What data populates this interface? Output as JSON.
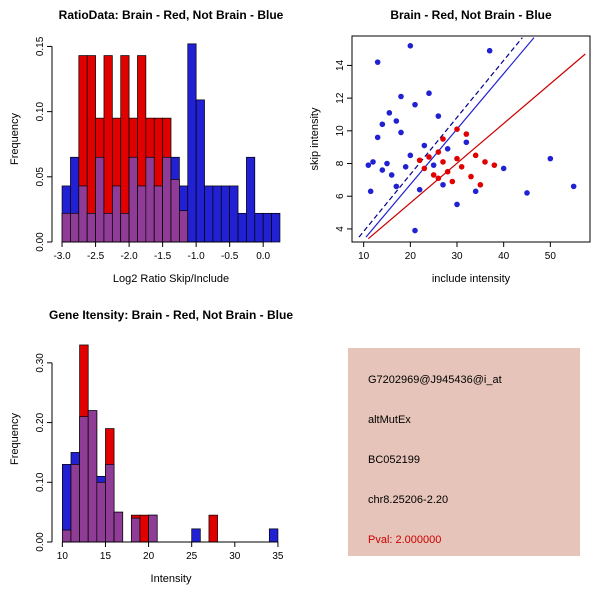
{
  "background": "#FFFFFF",
  "info_panel": {
    "bg_color": "#E6C4B9",
    "probe_id": "G7202969@J945436@i_at",
    "event_type": "altMutEx",
    "accession": "BC052199",
    "location": "chr8.25206-2.20",
    "pval": "Pval: 2.000000",
    "pval_color": "#CC0000"
  },
  "chart_data": [
    {
      "id": "ratio_hist",
      "type": "histogram",
      "title": "RatioData: Brain - Red, Not Brain - Blue",
      "xlabel": "Log2 Ratio Skip/Include",
      "ylabel": "Frequency",
      "xlim": [
        -3.15,
        0.4
      ],
      "ylim": [
        0,
        0.158
      ],
      "xticks": [
        -3.0,
        -2.5,
        -2.0,
        -1.5,
        -1.0,
        -0.5,
        0.0
      ],
      "xtick_labels": [
        "-3.0",
        "-2.5",
        "-2.0",
        "-1.5",
        "-1.0",
        "-0.5",
        "0.0"
      ],
      "yticks": [
        0.0,
        0.05,
        0.1,
        0.15
      ],
      "ytick_labels": [
        "0.00",
        "0.05",
        "0.10",
        "0.15"
      ],
      "bin_width": 0.125,
      "colors": {
        "red": "#E10000",
        "blue": "#2121D3",
        "overlap": "#8F3C96"
      },
      "bins": [
        {
          "x": -3.0,
          "r": 0.022,
          "b": 0.043
        },
        {
          "x": -2.875,
          "r": 0.022,
          "b": 0.065
        },
        {
          "x": -2.75,
          "r": 0.143,
          "b": 0.043
        },
        {
          "x": -2.625,
          "r": 0.143,
          "b": 0.022
        },
        {
          "x": -2.5,
          "r": 0.095,
          "b": 0.065
        },
        {
          "x": -2.375,
          "r": 0.143,
          "b": 0.022
        },
        {
          "x": -2.25,
          "r": 0.095,
          "b": 0.043
        },
        {
          "x": -2.125,
          "r": 0.143,
          "b": 0.022
        },
        {
          "x": -2.0,
          "r": 0.095,
          "b": 0.065
        },
        {
          "x": -1.875,
          "r": 0.143,
          "b": 0.043
        },
        {
          "x": -1.75,
          "r": 0.095,
          "b": 0.065
        },
        {
          "x": -1.625,
          "r": 0.095,
          "b": 0.043
        },
        {
          "x": -1.5,
          "r": 0.095,
          "b": 0.065
        },
        {
          "x": -1.375,
          "r": 0.048,
          "b": 0.065
        },
        {
          "x": -1.25,
          "r": 0.024,
          "b": 0.043
        },
        {
          "x": -1.125,
          "r": 0.0,
          "b": 0.152
        },
        {
          "x": -1.0,
          "r": 0.0,
          "b": 0.109
        },
        {
          "x": -0.875,
          "r": 0.0,
          "b": 0.043
        },
        {
          "x": -0.75,
          "r": 0.0,
          "b": 0.043
        },
        {
          "x": -0.625,
          "r": 0.0,
          "b": 0.043
        },
        {
          "x": -0.5,
          "r": 0.0,
          "b": 0.043
        },
        {
          "x": -0.375,
          "r": 0.0,
          "b": 0.022
        },
        {
          "x": -0.25,
          "r": 0.0,
          "b": 0.065
        },
        {
          "x": -0.125,
          "r": 0.0,
          "b": 0.022
        },
        {
          "x": 0.0,
          "r": 0.0,
          "b": 0.022
        },
        {
          "x": 0.125,
          "r": 0.0,
          "b": 0.022
        }
      ]
    },
    {
      "id": "scatter",
      "type": "scatter",
      "title": "Brain - Red, Not Brain - Blue",
      "xlabel": "include intensity",
      "ylabel": "skip intensity",
      "xlim": [
        7.5,
        58.5
      ],
      "ylim": [
        3.2,
        15.8
      ],
      "xticks": [
        10,
        20,
        30,
        40,
        50
      ],
      "xtick_labels": [
        "10",
        "20",
        "30",
        "40",
        "50"
      ],
      "yticks": [
        4,
        6,
        8,
        10,
        12,
        14
      ],
      "ytick_labels": [
        "4",
        "6",
        "8",
        "10",
        "12",
        "14"
      ],
      "colors": {
        "red": "#E10000",
        "blue": "#2121D3"
      },
      "points": {
        "blue": [
          [
            11,
            7.9
          ],
          [
            11.5,
            6.3
          ],
          [
            12,
            8.1
          ],
          [
            13,
            9.6
          ],
          [
            13,
            14.2
          ],
          [
            14,
            7.6
          ],
          [
            14,
            10.4
          ],
          [
            15,
            8.0
          ],
          [
            15.5,
            11.1
          ],
          [
            16,
            7.3
          ],
          [
            17,
            10.6
          ],
          [
            17,
            6.6
          ],
          [
            18,
            9.9
          ],
          [
            18,
            12.1
          ],
          [
            19,
            7.8
          ],
          [
            20,
            15.2
          ],
          [
            20,
            8.5
          ],
          [
            21,
            11.6
          ],
          [
            21,
            3.9
          ],
          [
            22,
            6.4
          ],
          [
            23,
            9.1
          ],
          [
            24,
            12.3
          ],
          [
            25,
            7.9
          ],
          [
            26,
            10.9
          ],
          [
            27,
            6.7
          ],
          [
            28,
            8.9
          ],
          [
            30,
            5.5
          ],
          [
            32,
            9.3
          ],
          [
            34,
            6.3
          ],
          [
            37,
            14.9
          ],
          [
            40,
            7.7
          ],
          [
            45,
            6.2
          ],
          [
            50,
            8.3
          ],
          [
            55,
            6.6
          ]
        ],
        "red": [
          [
            22,
            8.2
          ],
          [
            23,
            7.7
          ],
          [
            24,
            8.4
          ],
          [
            25,
            7.3
          ],
          [
            26,
            8.7
          ],
          [
            26,
            7.1
          ],
          [
            27,
            8.1
          ],
          [
            27,
            9.5
          ],
          [
            28,
            7.5
          ],
          [
            29,
            6.9
          ],
          [
            30,
            8.3
          ],
          [
            30,
            10.1
          ],
          [
            31,
            7.8
          ],
          [
            32,
            9.8
          ],
          [
            33,
            7.2
          ],
          [
            34,
            8.5
          ],
          [
            35,
            6.7
          ],
          [
            36,
            8.1
          ],
          [
            38,
            7.9
          ]
        ]
      },
      "lines": [
        {
          "color": "#00008B",
          "dash": "5,3",
          "from": [
            9,
            3.5
          ],
          "to": [
            44,
            15.7
          ]
        },
        {
          "color": "#2121D3",
          "dash": "",
          "from": [
            10.5,
            3.5
          ],
          "to": [
            46.5,
            15.7
          ]
        },
        {
          "color": "#CC0000",
          "dash": "",
          "from": [
            11,
            3.4
          ],
          "to": [
            57.5,
            14.7
          ]
        }
      ]
    },
    {
      "id": "gene_hist",
      "type": "histogram",
      "title": "Gene Itensity: Brain - Red, Not Brain - Blue",
      "xlabel": "Intensity",
      "ylabel": "Frequency",
      "xlim": [
        8.8,
        36.4
      ],
      "ylim": [
        0,
        0.345
      ],
      "xticks": [
        10,
        15,
        20,
        25,
        30,
        35
      ],
      "xtick_labels": [
        "10",
        "15",
        "20",
        "25",
        "30",
        "35"
      ],
      "yticks": [
        0.0,
        0.1,
        0.2,
        0.3
      ],
      "ytick_labels": [
        "0.00",
        "0.10",
        "0.20",
        "0.30"
      ],
      "bin_width": 1,
      "colors": {
        "red": "#E10000",
        "blue": "#2121D3",
        "overlap": "#8F3C96"
      },
      "bins": [
        {
          "x": 10,
          "r": 0.02,
          "b": 0.13
        },
        {
          "x": 11,
          "r": 0.13,
          "b": 0.15
        },
        {
          "x": 12,
          "r": 0.33,
          "b": 0.21
        },
        {
          "x": 13,
          "r": 0.22,
          "b": 0.22
        },
        {
          "x": 14,
          "r": 0.1,
          "b": 0.11
        },
        {
          "x": 15,
          "r": 0.19,
          "b": 0.13
        },
        {
          "x": 16,
          "r": 0.05,
          "b": 0.05
        },
        {
          "x": 18,
          "r": 0.045,
          "b": 0.04
        },
        {
          "x": 19,
          "r": 0.045,
          "b": 0.0
        },
        {
          "x": 20,
          "r": 0.045,
          "b": 0.045
        },
        {
          "x": 25,
          "r": 0.0,
          "b": 0.022
        },
        {
          "x": 27,
          "r": 0.045,
          "b": 0.0
        },
        {
          "x": 34,
          "r": 0.0,
          "b": 0.022
        }
      ]
    }
  ]
}
